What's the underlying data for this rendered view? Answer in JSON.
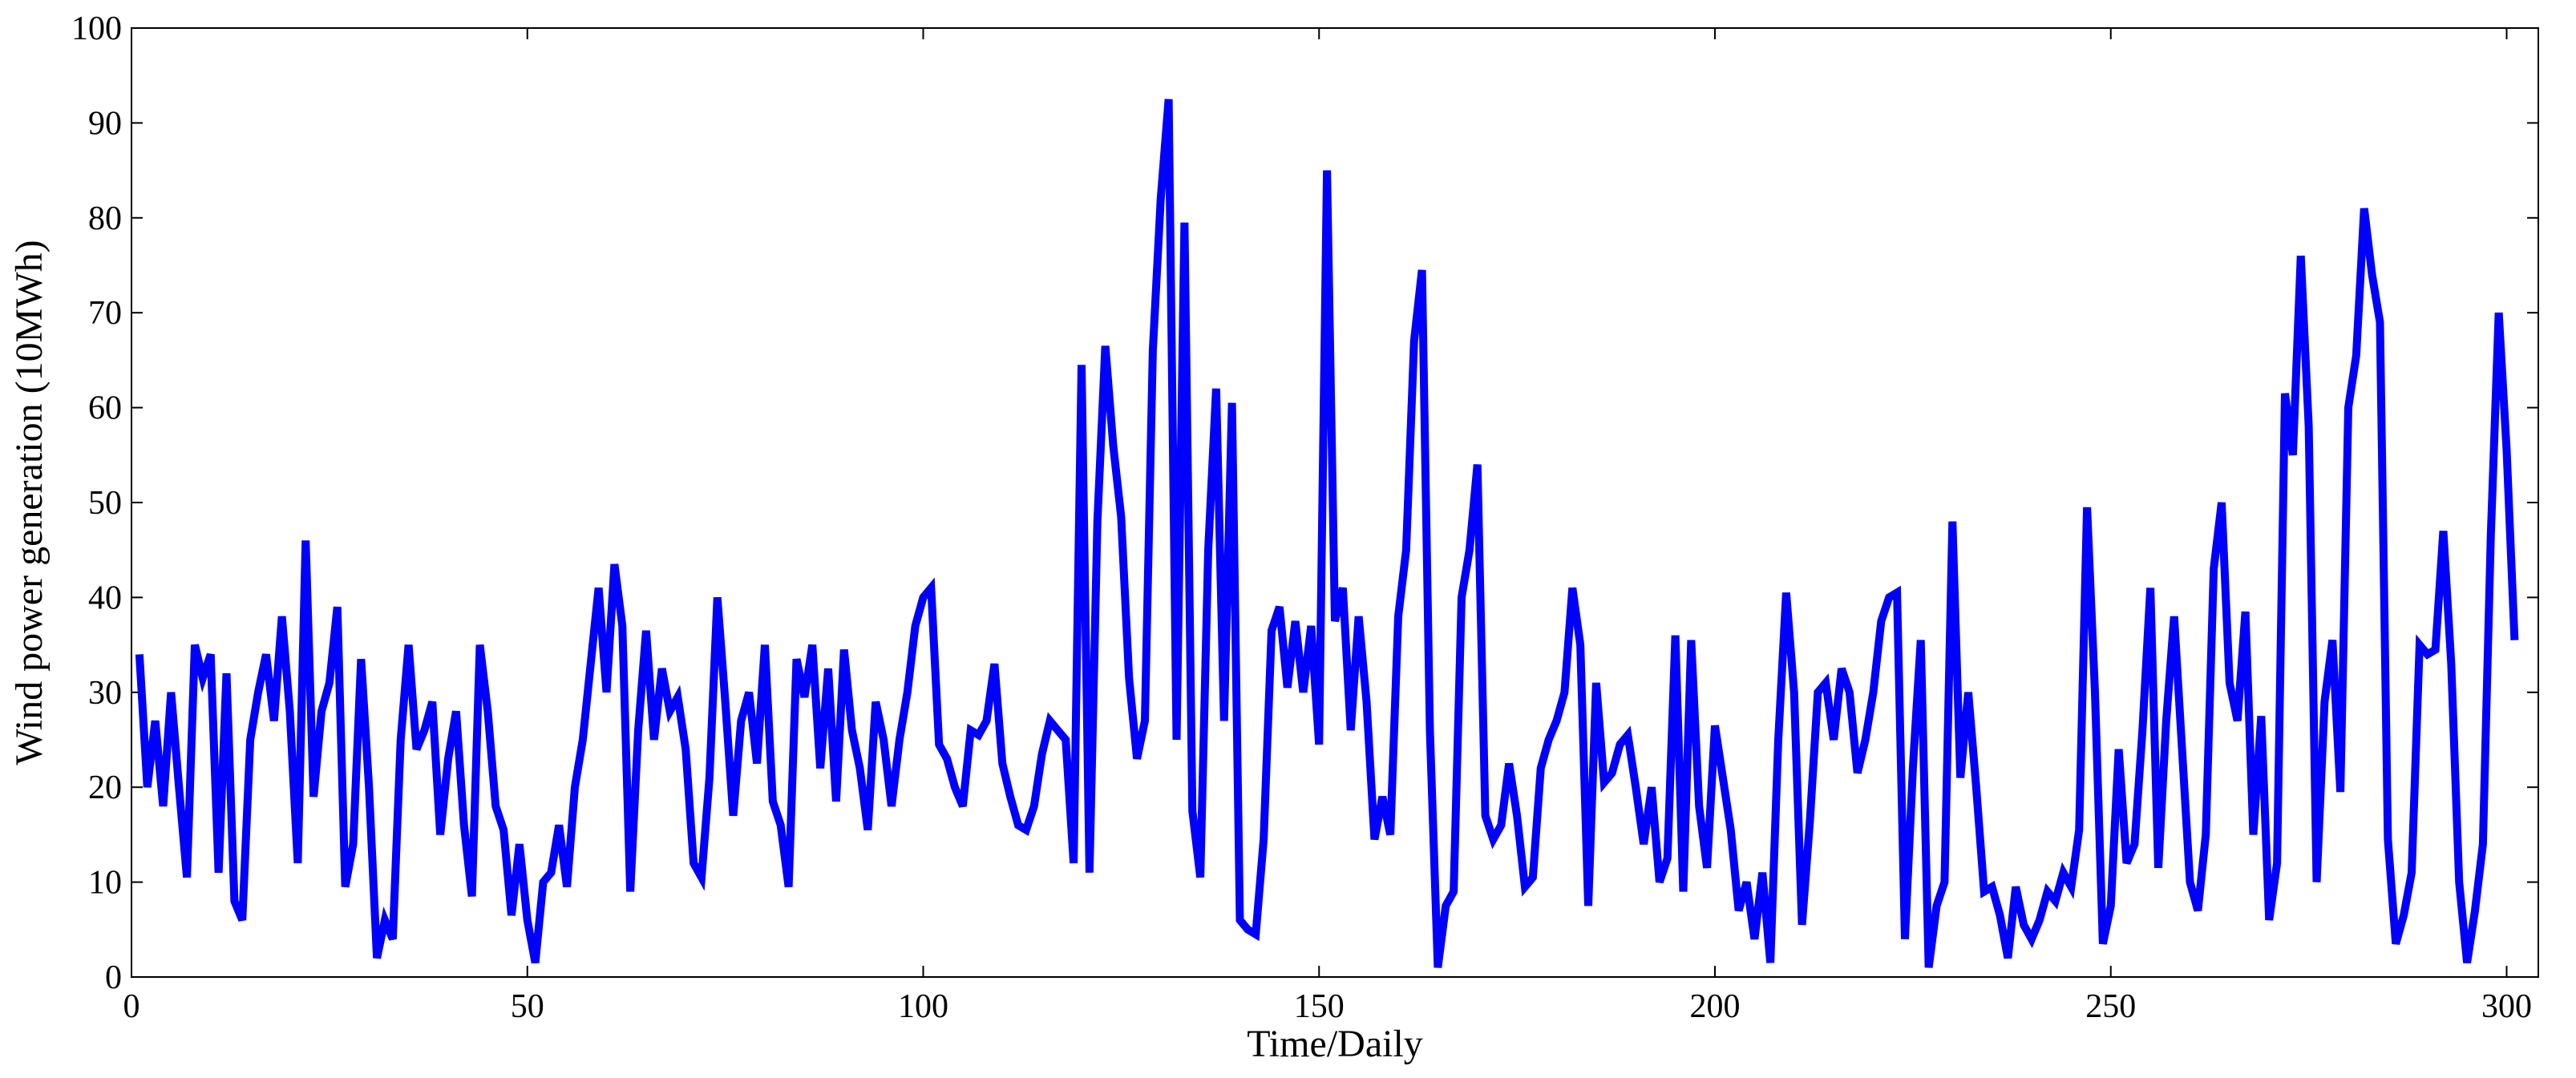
{
  "chart_data": {
    "type": "line",
    "xlabel": "Time/Daily",
    "ylabel": "Wind power generation (10MWh)",
    "color": "#0000ff",
    "xlim": [
      0,
      304
    ],
    "xticks": [
      0,
      50,
      100,
      150,
      200,
      250,
      300
    ],
    "ylim": [
      0,
      100
    ],
    "yticks": [
      0,
      10,
      20,
      30,
      40,
      50,
      60,
      70,
      80,
      90,
      100
    ],
    "x": [
      1,
      2,
      3,
      4,
      5,
      6,
      7,
      8,
      9,
      10,
      11,
      12,
      13,
      14,
      15,
      16,
      17,
      18,
      19,
      20,
      21,
      22,
      23,
      24,
      25,
      26,
      27,
      28,
      29,
      30,
      31,
      32,
      33,
      34,
      35,
      36,
      37,
      38,
      39,
      40,
      41,
      42,
      43,
      44,
      45,
      46,
      47,
      48,
      49,
      50,
      51,
      52,
      53,
      54,
      55,
      56,
      57,
      58,
      59,
      60,
      61,
      62,
      63,
      64,
      65,
      66,
      67,
      68,
      69,
      70,
      71,
      72,
      73,
      74,
      75,
      76,
      77,
      78,
      79,
      80,
      81,
      82,
      83,
      84,
      85,
      86,
      87,
      88,
      89,
      90,
      91,
      92,
      93,
      94,
      95,
      96,
      97,
      98,
      99,
      100,
      101,
      102,
      103,
      104,
      105,
      106,
      107,
      108,
      109,
      110,
      111,
      112,
      113,
      114,
      115,
      116,
      117,
      118,
      119,
      120,
      121,
      122,
      123,
      124,
      125,
      126,
      127,
      128,
      129,
      130,
      131,
      132,
      133,
      134,
      135,
      136,
      137,
      138,
      139,
      140,
      141,
      142,
      143,
      144,
      145,
      146,
      147,
      148,
      149,
      150,
      151,
      152,
      153,
      154,
      155,
      156,
      157,
      158,
      159,
      160,
      161,
      162,
      163,
      164,
      165,
      166,
      167,
      168,
      169,
      170,
      171,
      172,
      173,
      174,
      175,
      176,
      177,
      178,
      179,
      180,
      181,
      182,
      183,
      184,
      185,
      186,
      187,
      188,
      189,
      190,
      191,
      192,
      193,
      194,
      195,
      196,
      197,
      198,
      199,
      200,
      201,
      202,
      203,
      204,
      205,
      206,
      207,
      208,
      209,
      210,
      211,
      212,
      213,
      214,
      215,
      216,
      217,
      218,
      219,
      220,
      221,
      222,
      223,
      224,
      225,
      226,
      227,
      228,
      229,
      230,
      231,
      232,
      233,
      234,
      235,
      236,
      237,
      238,
      239,
      240,
      241,
      242,
      243,
      244,
      245,
      246,
      247,
      248,
      249,
      250,
      251,
      252,
      253,
      254,
      255,
      256,
      257,
      258,
      259,
      260,
      261,
      262,
      263,
      264,
      265,
      266,
      267,
      268,
      269,
      270,
      271,
      272,
      273,
      274,
      275,
      276,
      277,
      278,
      279,
      280,
      281,
      282,
      283,
      284,
      285,
      286,
      287,
      288,
      289,
      290,
      291,
      292,
      293,
      294,
      295,
      296,
      297,
      298,
      299,
      300,
      301
    ],
    "values": [
      34,
      20,
      27,
      18,
      30,
      20,
      10.5,
      35,
      31.5,
      34,
      11,
      32,
      8,
      6,
      25,
      30,
      34,
      27,
      38,
      28,
      12,
      46,
      19,
      28,
      31,
      39,
      9.5,
      14,
      33.5,
      20,
      2,
      6,
      4,
      25,
      35,
      24,
      26,
      29,
      15,
      23,
      28,
      16,
      8.5,
      35,
      28,
      18,
      15.5,
      6.5,
      14,
      6,
      1.5,
      10,
      11,
      16,
      9.5,
      20,
      25,
      33,
      41,
      30,
      43.5,
      37,
      9,
      26,
      36.5,
      25,
      32.5,
      28,
      29.5,
      24,
      12,
      10.5,
      21,
      40,
      29,
      17,
      27,
      30,
      22.5,
      35,
      18.5,
      16,
      9.5,
      33.5,
      29.5,
      35,
      22,
      32.5,
      18.5,
      34.5,
      26,
      22,
      15.5,
      29,
      25,
      18,
      25,
      30,
      37,
      40,
      41,
      24.5,
      23,
      20,
      18,
      26,
      25.5,
      27,
      33,
      22.5,
      19,
      16,
      15.5,
      18,
      23.5,
      27,
      26,
      25,
      12,
      64.5,
      11,
      48,
      66.5,
      56,
      48.5,
      31.5,
      23,
      27,
      66,
      82,
      92.5,
      25,
      79.5,
      17.5,
      10.5,
      45,
      62,
      27,
      60.5,
      6,
      5,
      4.5,
      14.5,
      36.5,
      39,
      30.5,
      37.5,
      30,
      37,
      24.5,
      85,
      37.5,
      41,
      26,
      38,
      29,
      14.5,
      19,
      15,
      38,
      45,
      67,
      74.5,
      26,
      1,
      7.5,
      9,
      40,
      45,
      54,
      17,
      14.5,
      16,
      22.5,
      17,
      9.5,
      10.5,
      22,
      25,
      27,
      30,
      41,
      35,
      7.5,
      31,
      20.5,
      21.5,
      24.5,
      25.5,
      20,
      14,
      20,
      10,
      12.5,
      36,
      9,
      35.5,
      18,
      11.5,
      26.5,
      21,
      15.5,
      7,
      10,
      4,
      11,
      1.5,
      25,
      40.5,
      30,
      5.5,
      16.5,
      30,
      31,
      25,
      32.5,
      30,
      21.5,
      25,
      30,
      37.5,
      40,
      40.5,
      4,
      22,
      35.5,
      1,
      7.5,
      10,
      48,
      21,
      30,
      20,
      9,
      9.5,
      6.5,
      2,
      9.5,
      5.5,
      4,
      6,
      9,
      8,
      11,
      9.5,
      15.5,
      49.5,
      30,
      3.5,
      7.5,
      24,
      12,
      14,
      26,
      41,
      11.5,
      27,
      38,
      24,
      10,
      7,
      15,
      43,
      50,
      31,
      27,
      38.5,
      15,
      27.5,
      6,
      12,
      61.5,
      55,
      76,
      58,
      10,
      29,
      35.5,
      19.5,
      60,
      65.5,
      81,
      74,
      69,
      14.5,
      3.5,
      6.5,
      11,
      35,
      34,
      34.5,
      47,
      33,
      10,
      1.5,
      7,
      14,
      46.5,
      70,
      55.5,
      35.5
    ]
  }
}
